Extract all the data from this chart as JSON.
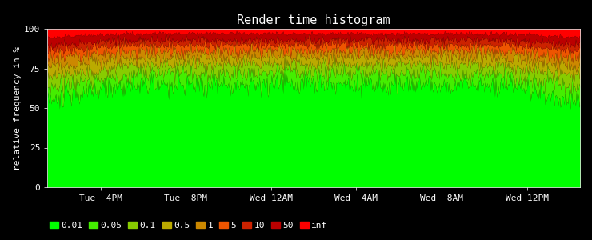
{
  "title": "Render time histogram",
  "ylabel": "relative frequency in %",
  "background_color": "#000000",
  "text_color": "#ffffff",
  "axis_color": "#ffffff",
  "title_fontsize": 11,
  "label_fontsize": 8,
  "tick_fontsize": 8,
  "ylim": [
    0,
    100
  ],
  "n_points": 700,
  "x_tick_labels": [
    "Tue  4PM",
    "Tue  8PM",
    "Wed 12AM",
    "Wed  4AM",
    "Wed  8AM",
    "Wed 12PM"
  ],
  "x_tick_positions": [
    0.1,
    0.26,
    0.42,
    0.58,
    0.74,
    0.9
  ],
  "legend_labels": [
    "0.01",
    "0.05",
    "0.1",
    "0.5",
    "1",
    "5",
    "10",
    "50",
    "inf"
  ],
  "legend_colors": [
    "#00ff00",
    "#44ee00",
    "#88cc00",
    "#bbaa00",
    "#cc8800",
    "#ee5500",
    "#cc2200",
    "#bb0000",
    "#ff0000"
  ],
  "boundary_bases": [
    63,
    70,
    76,
    81,
    86,
    90,
    93,
    97
  ],
  "boundary_noise_amp": [
    5,
    4,
    3,
    3,
    3,
    2,
    2,
    1
  ],
  "boundary_seeds": [
    10,
    20,
    30,
    40,
    50,
    60,
    70,
    80
  ]
}
